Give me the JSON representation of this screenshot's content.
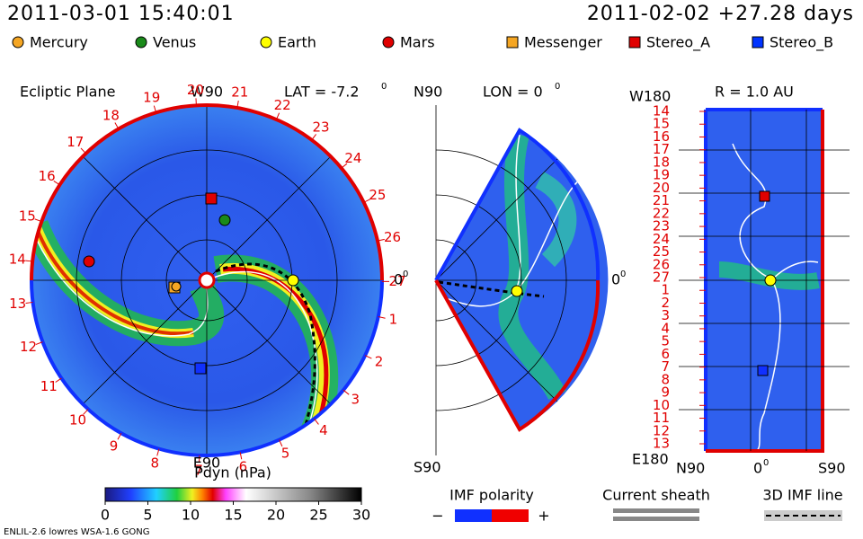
{
  "header": {
    "timestamp": "2011-03-01 15:40:01",
    "run": "2011-02-02 +27.28 days"
  },
  "bodies": [
    {
      "label": "Mercury",
      "color": "#f5a623",
      "shape": "circle"
    },
    {
      "label": "Venus",
      "color": "#1a8a1a",
      "shape": "circle"
    },
    {
      "label": "Earth",
      "color": "#ffff00",
      "shape": "circle"
    },
    {
      "label": "Mars",
      "color": "#e00000",
      "shape": "circle"
    },
    {
      "label": "Messenger",
      "color": "#f5a623",
      "shape": "square"
    },
    {
      "label": "Stereo_A",
      "color": "#e00000",
      "shape": "square"
    },
    {
      "label": "Stereo_B",
      "color": "#0033ff",
      "shape": "square"
    }
  ],
  "ecliptic": {
    "title": "Ecliptic Plane",
    "top": "W90",
    "lat": "LAT = -7.2",
    "lat_sup": "0",
    "right": "0",
    "right_sup": "0",
    "bottom": "E90",
    "ring_labels": [
      "1",
      "2",
      "3",
      "4",
      "5",
      "6",
      "7",
      "8",
      "9",
      "10",
      "11",
      "12",
      "13",
      "14",
      "15",
      "16",
      "17",
      "18",
      "19",
      "20",
      "21",
      "22",
      "23",
      "24",
      "25",
      "26",
      "27"
    ]
  },
  "meridional": {
    "top": "N90",
    "lon": "LON = 0",
    "lon_sup": "0",
    "right": "0",
    "right_sup": "0",
    "bottom": "S90"
  },
  "radial": {
    "top": "W180",
    "r": "R = 1.0 AU",
    "bottom": "E180",
    "x_left": "N90",
    "x_mid": "0",
    "x_mid_sup": "0",
    "x_right": "S90",
    "row_labels": [
      "14",
      "15",
      "16",
      "17",
      "18",
      "19",
      "20",
      "21",
      "22",
      "23",
      "24",
      "25",
      "26",
      "27",
      "1",
      "2",
      "3",
      "4",
      "5",
      "6",
      "7",
      "8",
      "9",
      "10",
      "11",
      "12",
      "13"
    ]
  },
  "colorbar": {
    "title": "Pdyn (nPa)",
    "lim": [
      0,
      30
    ],
    "ticks": [
      0,
      5,
      10,
      15,
      20,
      25,
      30
    ]
  },
  "key": {
    "polarity": "IMF polarity",
    "minus": "−",
    "plus": "+",
    "sheath": "Current sheath",
    "imf_line": "3D IMF line"
  },
  "footer": "ENLIL-2.6 lowres WSA-1.6 GONG"
}
